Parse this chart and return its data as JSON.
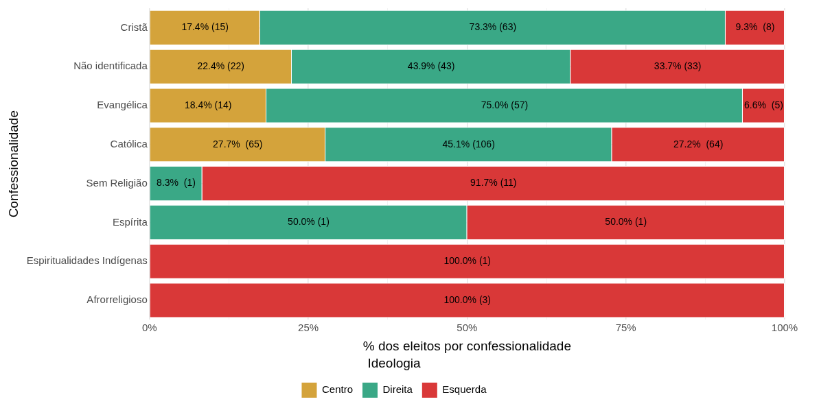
{
  "chart_data": {
    "type": "bar",
    "orientation": "horizontal",
    "stacked": true,
    "categories": [
      "Cristã",
      "Não identificada",
      "Evangélica",
      "Católica",
      "Sem Religião",
      "Espírita",
      "Espiritualidades Indígenas",
      "Afrorreligioso"
    ],
    "series": [
      {
        "name": "Centro",
        "color": "#d4a33b",
        "values": [
          17.4,
          22.4,
          18.4,
          27.7,
          null,
          null,
          null,
          null
        ],
        "value_labels": [
          "17.4% (15)",
          "22.4% (22)",
          "18.4% (14)",
          "27.7%  (65)",
          null,
          null,
          null,
          null
        ]
      },
      {
        "name": "Direita",
        "color": "#3aa886",
        "values": [
          73.3,
          43.9,
          75.0,
          45.1,
          8.3,
          50.0,
          null,
          null
        ],
        "value_labels": [
          "73.3% (63)",
          "43.9% (43)",
          "75.0% (57)",
          "45.1% (106)",
          "8.3%  (1)",
          "50.0% (1)",
          null,
          null
        ]
      },
      {
        "name": "Esquerda",
        "color": "#d93838",
        "values": [
          9.3,
          33.7,
          6.6,
          27.2,
          91.7,
          50.0,
          100.0,
          100.0
        ],
        "value_labels": [
          "9.3%  (8)",
          "33.7% (33)",
          "6.6%  (5)",
          "27.2%  (64)",
          "91.7% (11)",
          "50.0% (1)",
          "100.0% (1)",
          "100.0% (3)"
        ]
      }
    ],
    "xlabel": "% dos eleitos por confessionalidade",
    "ylabel": "Confessionalidade",
    "legend_title": "Ideologia",
    "xlim": [
      0,
      100
    ],
    "xticks": [
      {
        "value": 0,
        "label": "0%"
      },
      {
        "value": 12.5,
        "label": null
      },
      {
        "value": 25,
        "label": "25%"
      },
      {
        "value": 37.5,
        "label": null
      },
      {
        "value": 50,
        "label": "50%"
      },
      {
        "value": 62.5,
        "label": null
      },
      {
        "value": 75,
        "label": "75%"
      },
      {
        "value": 87.5,
        "label": null
      },
      {
        "value": 100,
        "label": "100%"
      }
    ],
    "grid": true,
    "legend": "bottom"
  }
}
